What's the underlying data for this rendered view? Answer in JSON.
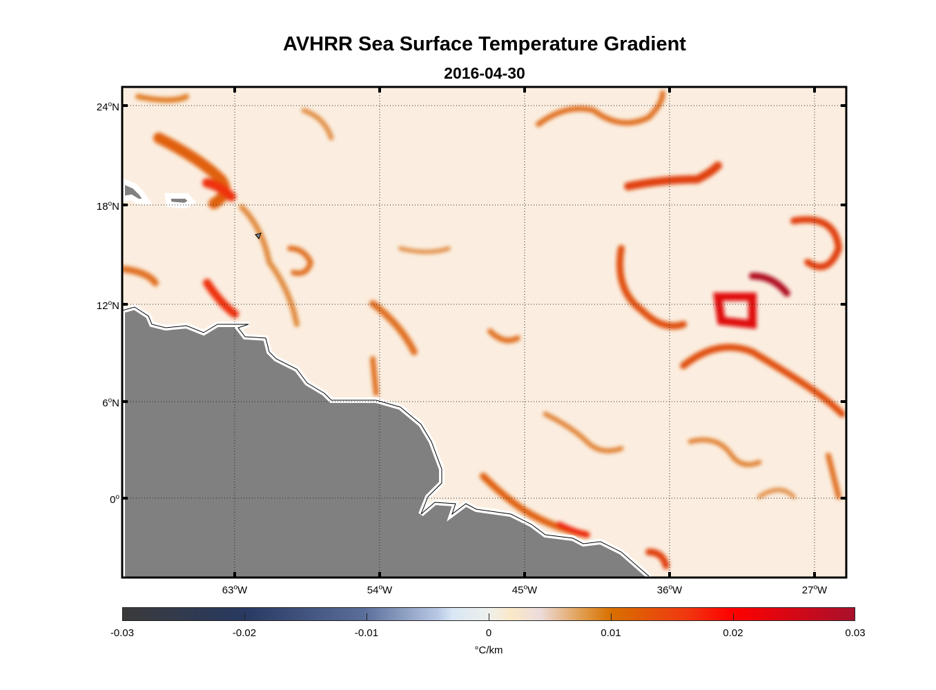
{
  "title": "AVHRR Sea Surface Temperature Gradient",
  "subtitle": "2016-04-30",
  "map": {
    "lon_range": [
      -70,
      -25
    ],
    "lat_range": [
      -5,
      25.2
    ],
    "lon_ticks": [
      {
        "deg": "63",
        "o": "o",
        "hemi": "W"
      },
      {
        "deg": "54",
        "o": "o",
        "hemi": "W"
      },
      {
        "deg": "45",
        "o": "o",
        "hemi": "W"
      },
      {
        "deg": "36",
        "o": "o",
        "hemi": "W"
      },
      {
        "deg": "27",
        "o": "o",
        "hemi": "W"
      }
    ],
    "lat_ticks": [
      {
        "deg": "24",
        "o": "o",
        "hemi": "N"
      },
      {
        "deg": "18",
        "o": "o",
        "hemi": "N"
      },
      {
        "deg": "12",
        "o": "o",
        "hemi": "N"
      },
      {
        "deg": "6",
        "o": "o",
        "hemi": "N"
      },
      {
        "deg": "0",
        "o": "o",
        "hemi": ""
      }
    ],
    "land_color": "#808080"
  },
  "colorbar": {
    "ticks": [
      "-0.03",
      "-0.02",
      "-0.01",
      "0",
      "0.01",
      "0.02",
      "0.03"
    ],
    "range": [
      -0.03,
      0.03
    ],
    "unit": "°C/km"
  }
}
